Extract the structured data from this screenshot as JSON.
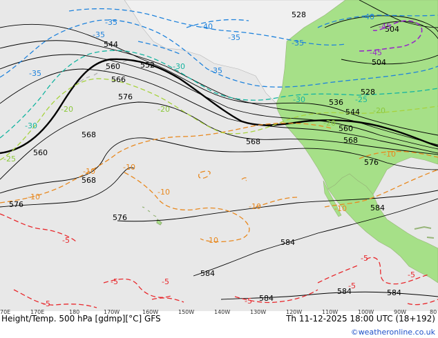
{
  "footer": {
    "left": "Height/Temp. 500 hPa [gdmp][°C] GFS",
    "right": "Th 11-12-2025 18:00 UTC (18+192)",
    "credit": "©weatheronline.co.uk"
  },
  "longitude_ticks": [
    "70E",
    "170E",
    "180",
    "170W",
    "160W",
    "150W",
    "140W",
    "130W",
    "120W",
    "110W",
    "100W",
    "90W",
    "80"
  ],
  "height_labels": [
    "528",
    "504",
    "504",
    "544",
    "552",
    "560",
    "566",
    "576",
    "568",
    "560",
    "568",
    "576",
    "576",
    "568",
    "536",
    "544",
    "560",
    "528",
    "568",
    "576",
    "584",
    "584",
    "584",
    "584",
    "584",
    "584"
  ],
  "temp_labels": {
    "orange": [
      "-10",
      "-10",
      "-10",
      "-10",
      "-10",
      "-10",
      "-10",
      "-10"
    ],
    "red": [
      "-5",
      "-5",
      "-5",
      "-5",
      "-5",
      "-5",
      "-5",
      "-5"
    ],
    "green": [
      "-20",
      "-20",
      "-20",
      "-20",
      "-25",
      "-25"
    ],
    "teal": [
      "-30",
      "-30",
      "-30"
    ],
    "blue": [
      "-35",
      "-35",
      "-35",
      "-40",
      "-40",
      "-35",
      "-35",
      "-35"
    ],
    "purple": [
      "-45",
      "-45"
    ]
  },
  "colors": {
    "ocean": "#e8e8e8",
    "land_canada_alaska": "#e9e9e9",
    "land_green": "#a6e088",
    "land_mexico": "#a6e088",
    "height_contour": "#000000",
    "temp_m5": "#e8282c",
    "temp_m10": "#e8881e",
    "temp_m20": "#a6d23c",
    "temp_m30": "#14b4a0",
    "temp_m35": "#1e82dc",
    "temp_m45": "#9628c8"
  }
}
